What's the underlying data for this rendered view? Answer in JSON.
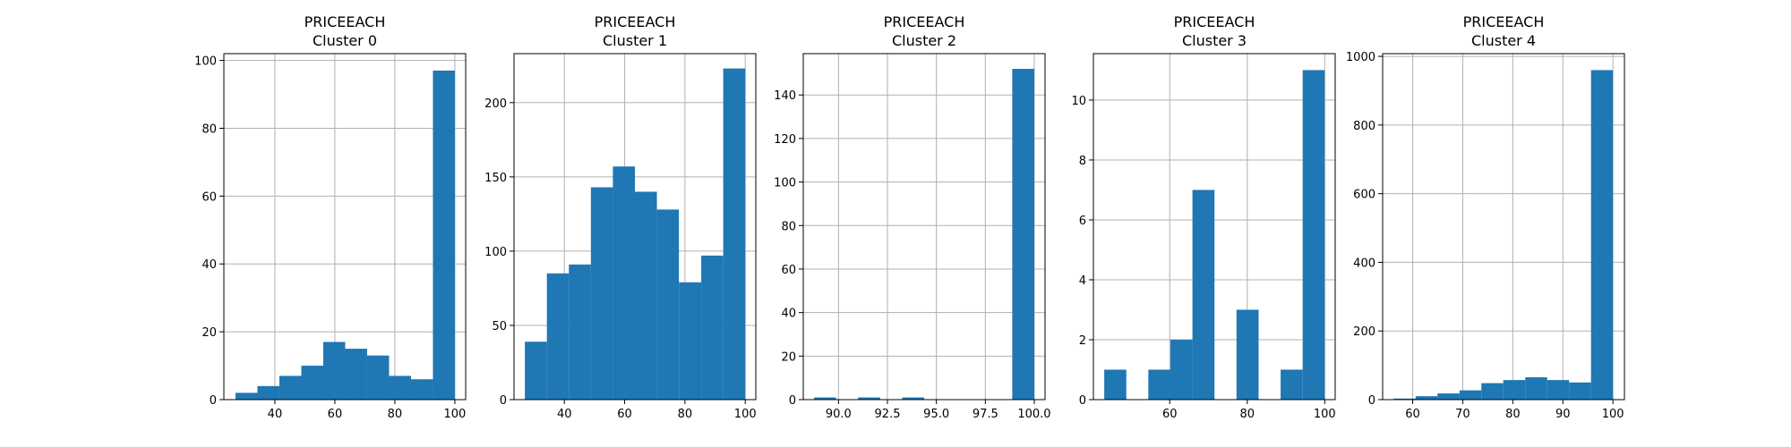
{
  "colors": {
    "bar": "#1f77b4",
    "grid": "#b0b0b0",
    "axis": "#000000",
    "background": "#ffffff"
  },
  "chart_data": [
    {
      "type": "bar",
      "histogram": true,
      "title_line1": "PRICEEACH",
      "title_line2": "Cluster 0",
      "xlim": [
        23.0,
        103.6
      ],
      "ylim": [
        0,
        102
      ],
      "xticks": [
        40,
        60,
        80,
        100
      ],
      "xtick_labels": [
        "40",
        "60",
        "80",
        "100"
      ],
      "yticks": [
        0,
        20,
        40,
        60,
        80,
        100
      ],
      "ytick_labels": [
        "0",
        "20",
        "40",
        "60",
        "80",
        "100"
      ],
      "bin_edges": [
        26.88,
        34.19,
        41.5,
        48.82,
        56.13,
        63.44,
        70.75,
        78.06,
        85.38,
        92.69,
        100.0
      ],
      "values": [
        2,
        4,
        7,
        10,
        17,
        15,
        13,
        7,
        6,
        97
      ],
      "grid": true
    },
    {
      "type": "bar",
      "histogram": true,
      "title_line1": "PRICEEACH",
      "title_line2": "Cluster 1",
      "xlim": [
        23.3,
        103.5
      ],
      "ylim": [
        0,
        233
      ],
      "xticks": [
        40,
        60,
        80,
        100
      ],
      "xtick_labels": [
        "40",
        "60",
        "80",
        "100"
      ],
      "yticks": [
        0,
        50,
        100,
        150,
        200
      ],
      "ytick_labels": [
        "0",
        "50",
        "100",
        "150",
        "200"
      ],
      "bin_edges": [
        26.9,
        34.2,
        41.5,
        48.8,
        56.1,
        63.4,
        70.7,
        78.0,
        85.4,
        92.7,
        100.0
      ],
      "values": [
        39,
        85,
        91,
        143,
        157,
        140,
        128,
        79,
        97,
        223
      ],
      "grid": true
    },
    {
      "type": "bar",
      "histogram": true,
      "title_line1": "PRICEEACH",
      "title_line2": "Cluster 2",
      "xlim": [
        88.2,
        100.55
      ],
      "ylim": [
        0,
        159
      ],
      "xticks": [
        90.0,
        92.5,
        95.0,
        97.5,
        100.0
      ],
      "xtick_labels": [
        "90.0",
        "92.5",
        "95.0",
        "97.5",
        "100.0"
      ],
      "yticks": [
        0,
        20,
        40,
        60,
        80,
        100,
        120,
        140
      ],
      "ytick_labels": [
        "0",
        "20",
        "40",
        "60",
        "80",
        "100",
        "120",
        "140"
      ],
      "bin_edges": [
        88.75,
        89.875,
        91.0,
        92.125,
        93.25,
        94.375,
        95.5,
        96.625,
        97.75,
        98.875,
        100.0
      ],
      "values": [
        1,
        0,
        1,
        0,
        1,
        0,
        0,
        0,
        0,
        152
      ],
      "grid": true
    },
    {
      "type": "bar",
      "histogram": true,
      "title_line1": "PRICEEACH",
      "title_line2": "Cluster 3",
      "xlim": [
        40.3,
        102.7
      ],
      "ylim": [
        0,
        11.55
      ],
      "xticks": [
        60,
        80,
        100
      ],
      "xtick_labels": [
        "60",
        "80",
        "100"
      ],
      "yticks": [
        0,
        2,
        4,
        6,
        8,
        10
      ],
      "ytick_labels": [
        "0",
        "2",
        "4",
        "6",
        "8",
        "10"
      ],
      "bin_edges": [
        43.1,
        48.79,
        54.48,
        60.17,
        65.86,
        71.55,
        77.24,
        82.93,
        88.62,
        94.31,
        100.0
      ],
      "values": [
        1,
        0,
        1,
        2,
        7,
        0,
        3,
        0,
        1,
        11
      ],
      "grid": true
    },
    {
      "type": "bar",
      "histogram": true,
      "title_line1": "PRICEEACH",
      "title_line2": "Cluster 4",
      "xlim": [
        54.0,
        102.3
      ],
      "ylim": [
        0,
        1008
      ],
      "xticks": [
        60,
        70,
        80,
        90,
        100
      ],
      "xtick_labels": [
        "60",
        "70",
        "80",
        "90",
        "100"
      ],
      "yticks": [
        0,
        200,
        400,
        600,
        800,
        1000
      ],
      "ytick_labels": [
        "0",
        "200",
        "400",
        "600",
        "800",
        "1000"
      ],
      "bin_edges": [
        56.2,
        60.58,
        64.96,
        69.34,
        73.72,
        78.1,
        82.48,
        86.86,
        91.24,
        95.62,
        100.0
      ],
      "values": [
        3,
        10,
        18,
        27,
        48,
        57,
        65,
        57,
        50,
        960
      ],
      "grid": true
    }
  ]
}
